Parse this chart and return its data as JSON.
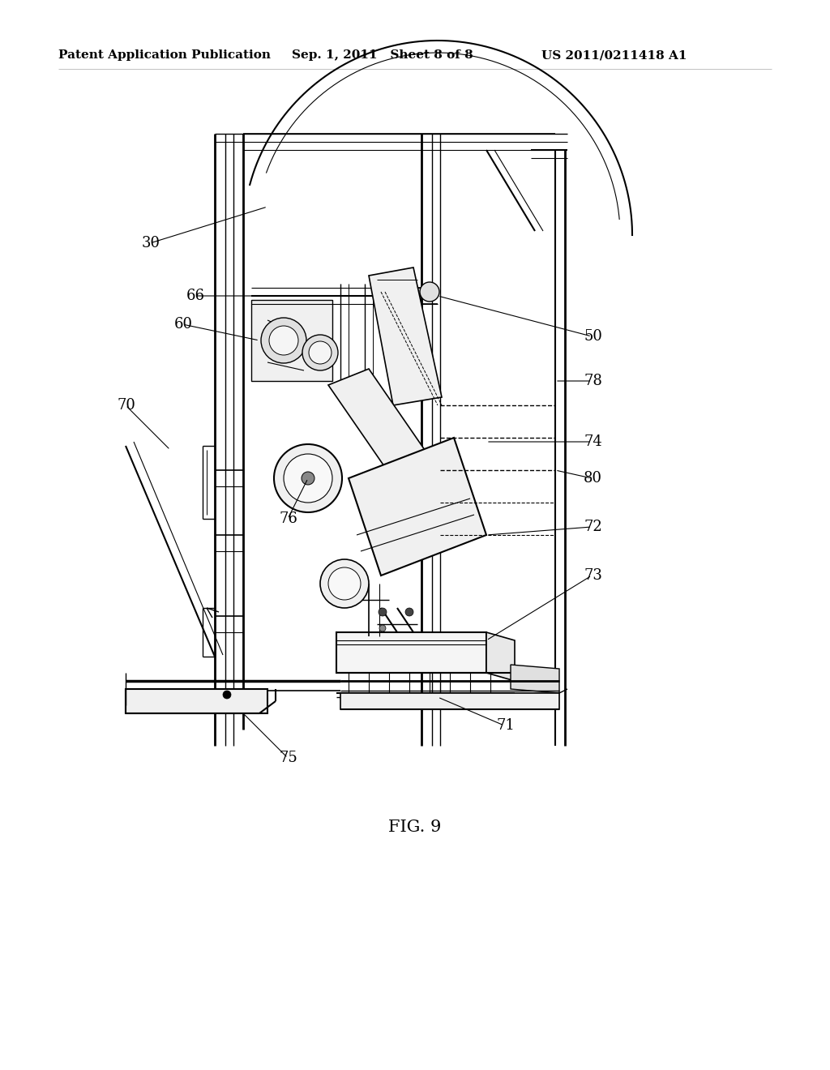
{
  "background_color": "#ffffff",
  "header_left": "Patent Application Publication",
  "header_center": "Sep. 1, 2011   Sheet 8 of 8",
  "header_right": "US 2011/0211418 A1",
  "figure_label": "FIG. 9",
  "line_color": "#000000",
  "text_color": "#000000",
  "header_fontsize": 11,
  "label_fontsize": 13,
  "fig_label_fontsize": 15
}
